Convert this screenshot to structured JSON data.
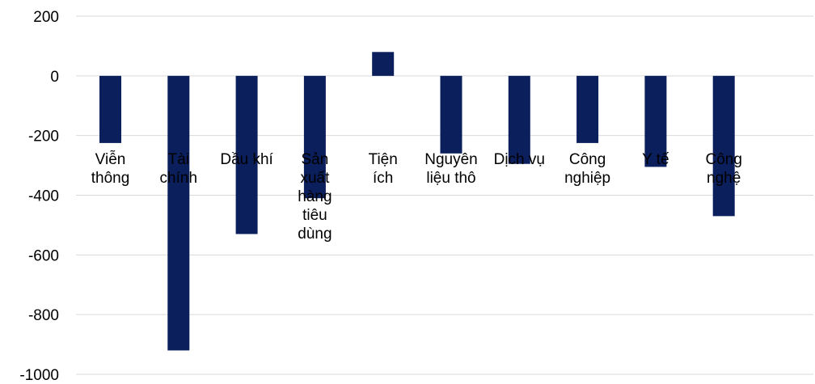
{
  "chart_data": {
    "type": "bar",
    "categories": [
      "Viễn thông",
      "Tài chính",
      "Dầu khí",
      "Sản xuất hàng tiêu dùng",
      "Tiện ích",
      "Nguyên liệu thô",
      "Dịch vụ",
      "Công nghiệp",
      "Y tế",
      "Công nghệ"
    ],
    "category_label_lines": [
      [
        "Viễn",
        "thông"
      ],
      [
        "Tài",
        "chính"
      ],
      [
        "Dầu khí"
      ],
      [
        "Sản",
        "xuất",
        "hàng",
        "tiêu",
        "dùng"
      ],
      [
        "Tiện",
        "ích"
      ],
      [
        "Nguyên",
        "liệu thô"
      ],
      [
        "Dịch vụ"
      ],
      [
        "Công",
        "nghiệp"
      ],
      [
        "Y tế"
      ],
      [
        "Công",
        "nghệ"
      ]
    ],
    "series": [
      {
        "values": [
          -225,
          -920,
          -530,
          -410,
          80,
          -260,
          -295,
          -225,
          -305,
          -470
        ]
      }
    ],
    "yticks": [
      "200",
      "0",
      "-200",
      "-400",
      "-600",
      "-800",
      "-1000"
    ],
    "ylim": [
      -1000,
      200
    ],
    "grid": true,
    "legend": "none",
    "bar_color": "#0a1f5c",
    "grid_color": "#d9d9d9"
  }
}
